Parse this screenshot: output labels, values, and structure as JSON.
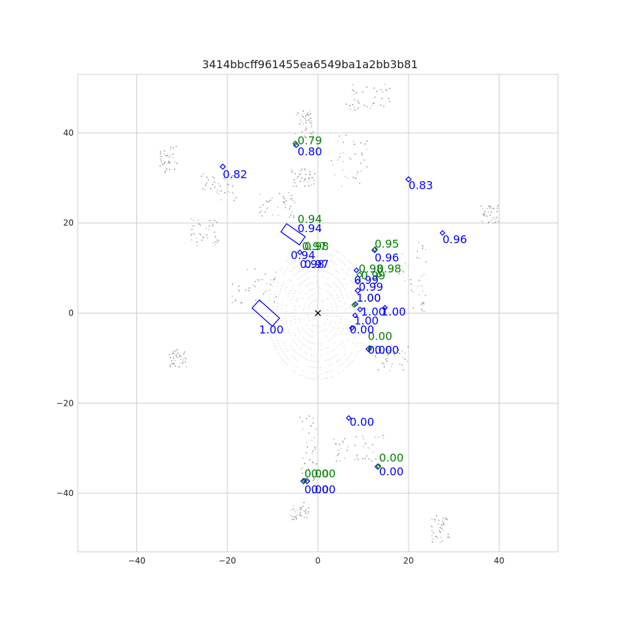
{
  "chart_data": {
    "type": "scatter",
    "title": "3414bbcff961455ea6549ba1a2bb3b81",
    "xlabel": "",
    "ylabel": "",
    "xlim": [
      -53,
      53
    ],
    "ylim": [
      -53,
      53
    ],
    "xticks": [
      -40,
      -20,
      0,
      20,
      40
    ],
    "yticks": [
      40,
      20,
      0,
      -20,
      -40
    ],
    "tick_labels_x": [
      "−40",
      "−20",
      "0",
      "20",
      "40"
    ],
    "tick_labels_y": [
      "40",
      "20",
      "0",
      "−20",
      "−40"
    ],
    "grid": true,
    "colors": {
      "ground_truth": "#008000",
      "prediction": "#0000ff",
      "grid": "#cccccc",
      "points": "#808080",
      "ego": "#000000"
    },
    "ego": {
      "x": 0,
      "y": 0,
      "marker": "x"
    },
    "ground_truth_labels": [
      {
        "x": -4.5,
        "y": 37.5,
        "text": "0.79"
      },
      {
        "x": -4.5,
        "y": 20,
        "text": "0.94"
      },
      {
        "x": -3.5,
        "y": 14,
        "text": "0.97"
      },
      {
        "x": -3,
        "y": 14,
        "text": "0.98"
      },
      {
        "x": 12.5,
        "y": 14.5,
        "text": "0.95"
      },
      {
        "x": 9,
        "y": 9,
        "text": "0.98"
      },
      {
        "x": 13,
        "y": 9,
        "text": "0.98"
      },
      {
        "x": 9.5,
        "y": 7.5,
        "text": "0.99"
      },
      {
        "x": 8.5,
        "y": 2.5,
        "text": "1.00"
      },
      {
        "x": 11,
        "y": -6,
        "text": "0.00"
      },
      {
        "x": 13.5,
        "y": -33,
        "text": "0.00"
      },
      {
        "x": -3,
        "y": -36.5,
        "text": "0.00"
      },
      {
        "x": -1.5,
        "y": -36.5,
        "text": "0.00"
      }
    ],
    "prediction_labels": [
      {
        "x": -4.5,
        "y": 35,
        "text": "0.80"
      },
      {
        "x": -21,
        "y": 30,
        "text": "0.82"
      },
      {
        "x": 20,
        "y": 27.5,
        "text": "0.83"
      },
      {
        "x": 27.5,
        "y": 15.5,
        "text": "0.96"
      },
      {
        "x": -4.5,
        "y": 18,
        "text": "0.94"
      },
      {
        "x": -6,
        "y": 12,
        "text": "0.94"
      },
      {
        "x": -4,
        "y": 10,
        "text": "0.98"
      },
      {
        "x": -3,
        "y": 10,
        "text": "0.97"
      },
      {
        "x": 12.5,
        "y": 11.5,
        "text": "0.96"
      },
      {
        "x": 8,
        "y": 6.5,
        "text": "0.99"
      },
      {
        "x": 9,
        "y": 5,
        "text": "0.99"
      },
      {
        "x": 8.5,
        "y": 2.5,
        "text": "1.00"
      },
      {
        "x": 9.5,
        "y": -0.5,
        "text": "1.00"
      },
      {
        "x": 14,
        "y": -0.5,
        "text": "1.00"
      },
      {
        "x": 8,
        "y": -2.5,
        "text": "1.00"
      },
      {
        "x": 7,
        "y": -4.5,
        "text": "0.00"
      },
      {
        "x": 11,
        "y": -9,
        "text": "0.00"
      },
      {
        "x": 12.5,
        "y": -9,
        "text": "0.00"
      },
      {
        "x": -13,
        "y": -4.5,
        "text": "1.00"
      },
      {
        "x": 7,
        "y": -25,
        "text": "0.00"
      },
      {
        "x": 13.5,
        "y": -36,
        "text": "0.00"
      },
      {
        "x": -3,
        "y": -40,
        "text": "0.00"
      },
      {
        "x": -1.5,
        "y": -40,
        "text": "0.00"
      }
    ],
    "prediction_boxes": [
      {
        "x": -5.5,
        "y": 17.5,
        "w": 2.2,
        "l": 5,
        "angle": -55
      },
      {
        "x": -11.5,
        "y": 0,
        "w": 2.4,
        "l": 6,
        "angle": -48
      },
      {
        "x": -21,
        "y": 32.5,
        "w": 0.8,
        "l": 0.8,
        "angle": 45
      },
      {
        "x": -4.8,
        "y": 37.3,
        "w": 0.8,
        "l": 0.8,
        "angle": 45
      },
      {
        "x": 20,
        "y": 29.7,
        "w": 0.8,
        "l": 0.8,
        "angle": 45
      },
      {
        "x": 27.5,
        "y": 17.8,
        "w": 0.7,
        "l": 0.7,
        "angle": 45
      },
      {
        "x": 12.5,
        "y": 14,
        "w": 0.8,
        "l": 0.8,
        "angle": 45
      },
      {
        "x": -4,
        "y": 13.5,
        "w": 0.7,
        "l": 0.7,
        "angle": 45
      },
      {
        "x": 8.5,
        "y": 9.5,
        "w": 0.7,
        "l": 0.7,
        "angle": 45
      },
      {
        "x": 8.8,
        "y": 7,
        "w": 0.8,
        "l": 0.8,
        "angle": 45
      },
      {
        "x": 8.8,
        "y": 5,
        "w": 0.8,
        "l": 0.8,
        "angle": 45
      },
      {
        "x": 8.3,
        "y": 2,
        "w": 0.7,
        "l": 0.7,
        "angle": 45
      },
      {
        "x": 9.3,
        "y": 0.8,
        "w": 0.7,
        "l": 0.7,
        "angle": 45
      },
      {
        "x": 14.8,
        "y": 1.2,
        "w": 0.7,
        "l": 0.7,
        "angle": 45
      },
      {
        "x": 8.2,
        "y": -0.5,
        "w": 0.7,
        "l": 0.7,
        "angle": 45
      },
      {
        "x": 7.5,
        "y": -3.3,
        "w": 0.7,
        "l": 0.7,
        "angle": 45
      },
      {
        "x": 11.2,
        "y": -8,
        "w": 0.8,
        "l": 0.8,
        "angle": 45
      },
      {
        "x": 6.8,
        "y": -23.3,
        "w": 0.7,
        "l": 0.7,
        "angle": 45
      },
      {
        "x": 13.2,
        "y": -34.1,
        "w": 0.8,
        "l": 0.8,
        "angle": 45
      },
      {
        "x": -3.2,
        "y": -37.3,
        "w": 0.8,
        "l": 0.8,
        "angle": 45
      },
      {
        "x": -2.4,
        "y": -37.3,
        "w": 0.8,
        "l": 0.8,
        "angle": 45
      }
    ],
    "ground_truth_boxes": [
      {
        "x": -5,
        "y": 37.7,
        "w": 0.7,
        "l": 0.7,
        "angle": 45
      },
      {
        "x": 12.6,
        "y": 14.2,
        "w": 0.7,
        "l": 0.7,
        "angle": 45
      },
      {
        "x": 9.2,
        "y": 8.5,
        "w": 0.8,
        "l": 0.8,
        "angle": 45
      },
      {
        "x": 13.5,
        "y": 8.5,
        "w": 0.8,
        "l": 0.8,
        "angle": 45
      },
      {
        "x": 8,
        "y": 1.8,
        "w": 0.7,
        "l": 0.7,
        "angle": 45
      },
      {
        "x": 11.4,
        "y": -7.7,
        "w": 0.7,
        "l": 0.7,
        "angle": 45
      },
      {
        "x": 13.4,
        "y": -34,
        "w": 0.7,
        "l": 0.7,
        "angle": 45
      },
      {
        "x": -2.9,
        "y": -37.2,
        "w": 0.7,
        "l": 0.7,
        "angle": 45
      }
    ]
  }
}
